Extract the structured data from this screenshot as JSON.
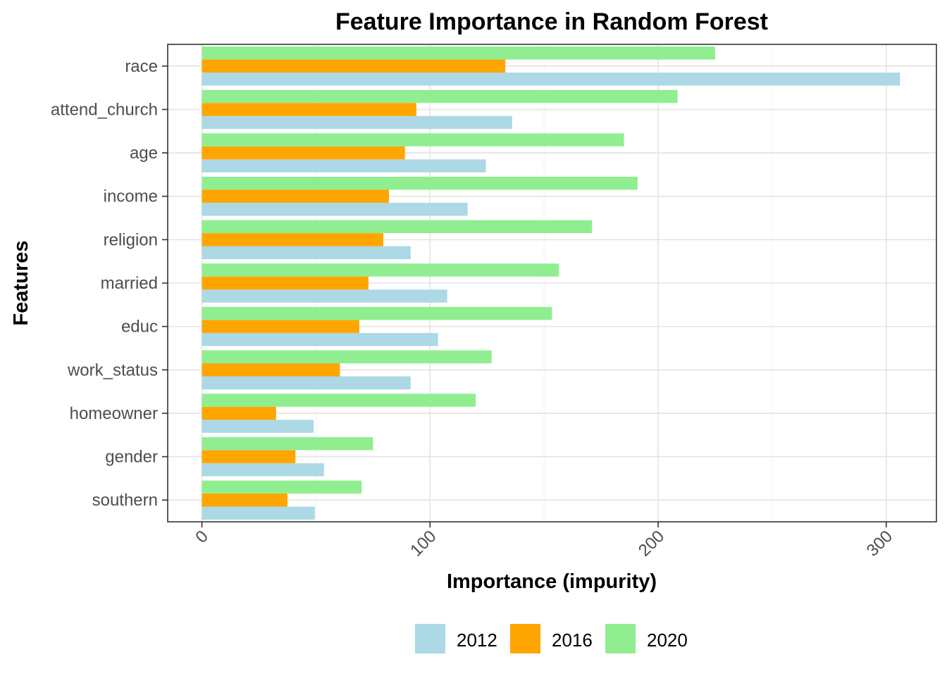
{
  "chart_data": {
    "type": "bar",
    "orientation": "horizontal",
    "title": "Feature Importance in Random Forest",
    "xlabel": "Importance (impurity)",
    "ylabel": "Features",
    "xlim": [
      -15,
      322
    ],
    "xticks": [
      0,
      100,
      200,
      300
    ],
    "grid": true,
    "legend_position": "bottom",
    "categories": [
      "race",
      "attend_church",
      "age",
      "income",
      "religion",
      "married",
      "educ",
      "work_status",
      "homeowner",
      "gender",
      "southern"
    ],
    "series": [
      {
        "name": "2012",
        "color": "#ADD8E6",
        "values": [
          306,
          136,
          124.5,
          116.5,
          91.5,
          107.5,
          103.5,
          91.5,
          49,
          53.5,
          49.5
        ]
      },
      {
        "name": "2016",
        "color": "#FFA500",
        "values": [
          133,
          94,
          89,
          82,
          79.5,
          73,
          69,
          60.5,
          32.5,
          41,
          37.5
        ]
      },
      {
        "name": "2020",
        "color": "#90EE90",
        "values": [
          225,
          208.5,
          185,
          191,
          171,
          156.5,
          153.5,
          127,
          120,
          75,
          70
        ]
      }
    ]
  }
}
